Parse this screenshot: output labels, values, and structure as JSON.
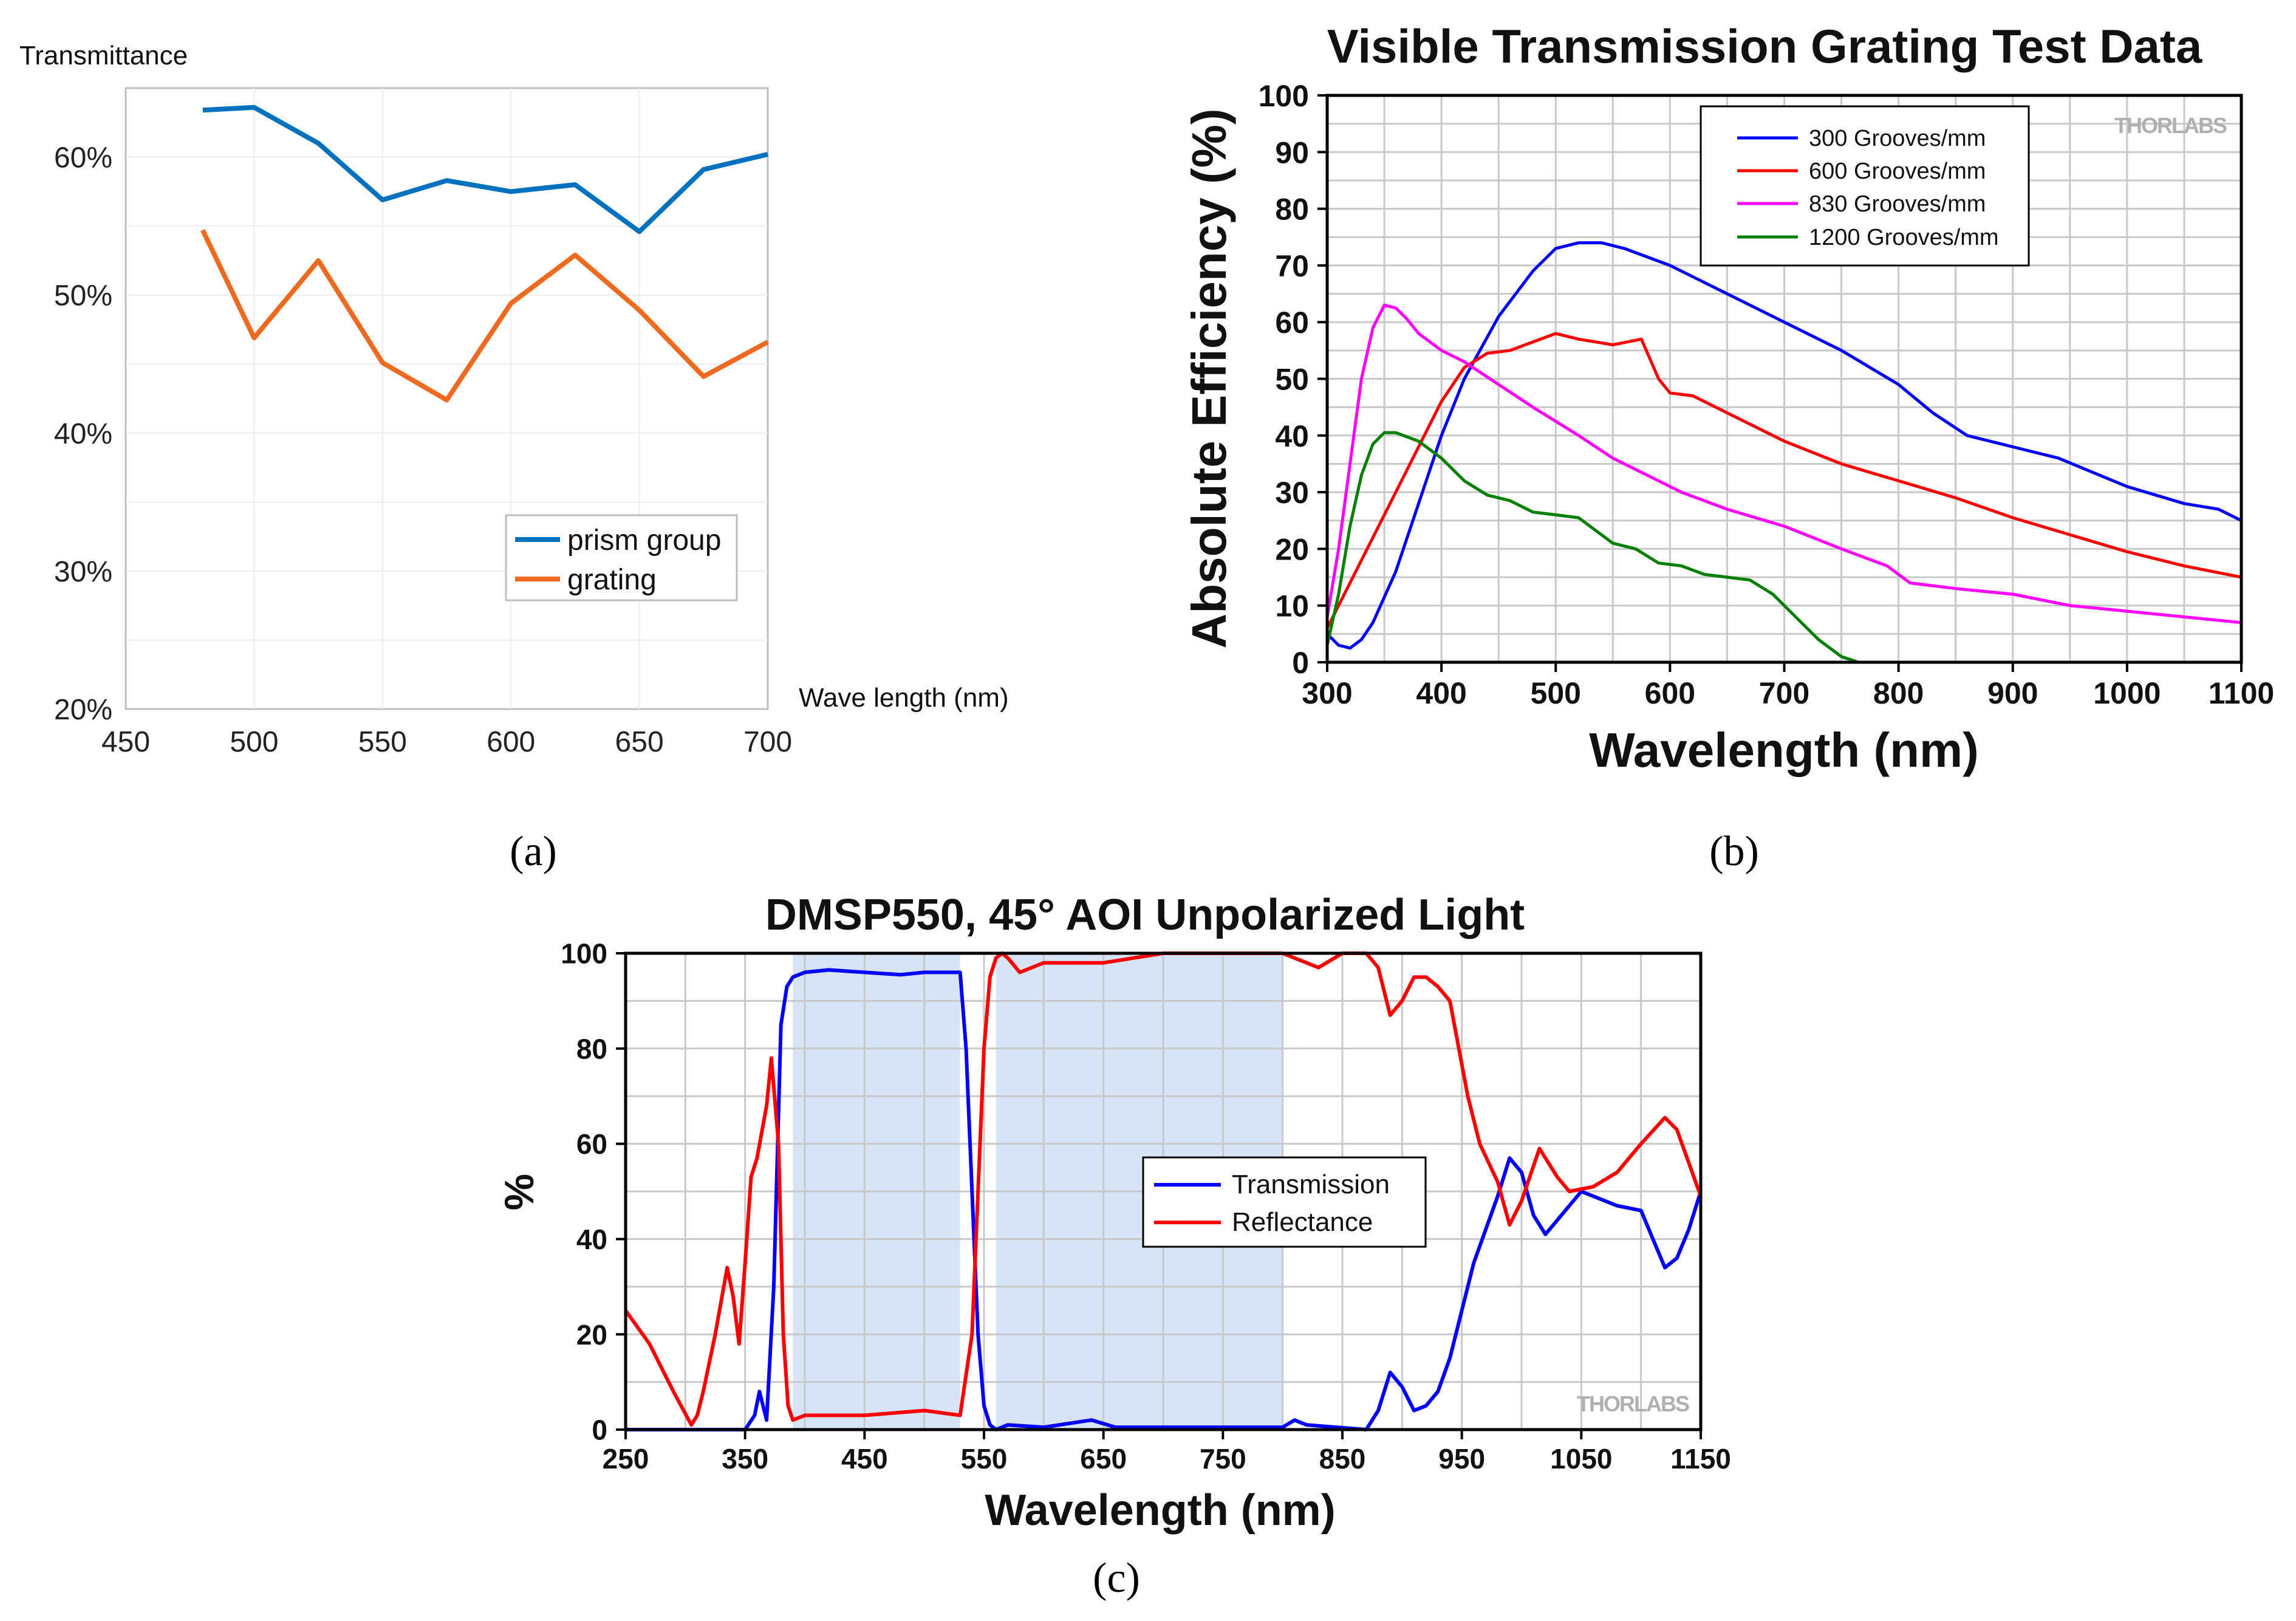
{
  "chart_data": [
    {
      "panel": "a",
      "panel_label": "(a)",
      "type": "line",
      "title": "",
      "ylabel": "Transmittance",
      "xlabel": "Wave length (nm)",
      "xlim": [
        450,
        700
      ],
      "ylim": [
        20,
        65
      ],
      "xticks": [
        450,
        500,
        550,
        600,
        650,
        700
      ],
      "yticks": [
        20,
        30,
        40,
        50,
        60
      ],
      "ytick_labels": [
        "20%",
        "30%",
        "40%",
        "50%",
        "60%"
      ],
      "grid": true,
      "legend": "lower-right",
      "series": [
        {
          "name": "prism group",
          "color": "#0072BD",
          "x": [
            480,
            500,
            525,
            550,
            575,
            600,
            625,
            650,
            675,
            700
          ],
          "y": [
            63.4,
            63.6,
            61.0,
            56.9,
            58.3,
            57.5,
            58.0,
            54.6,
            59.1,
            60.2
          ]
        },
        {
          "name": "grating",
          "color": "#EE6A1F",
          "x": [
            480,
            500,
            525,
            550,
            575,
            600,
            625,
            650,
            675,
            700
          ],
          "y": [
            54.7,
            46.9,
            52.5,
            45.1,
            42.4,
            49.4,
            52.9,
            48.9,
            44.1,
            46.6
          ]
        }
      ]
    },
    {
      "panel": "b",
      "panel_label": "(b)",
      "type": "line",
      "title": "Visible Transmission Grating Test Data",
      "xlabel": "Wavelength (nm)",
      "ylabel": "Absolute Efficiency (%)",
      "watermark": "THORLABS",
      "xlim": [
        300,
        1100
      ],
      "ylim": [
        0,
        100
      ],
      "xticks": [
        300,
        400,
        500,
        600,
        700,
        800,
        900,
        1000,
        1100
      ],
      "yticks": [
        0,
        10,
        20,
        30,
        40,
        50,
        60,
        70,
        80,
        90,
        100
      ],
      "grid": true,
      "legend": "top-center",
      "series": [
        {
          "name": "300 Grooves/mm",
          "color": "#0000FF",
          "x": [
            300,
            310,
            320,
            330,
            340,
            360,
            380,
            400,
            420,
            450,
            480,
            500,
            520,
            540,
            560,
            600,
            650,
            700,
            750,
            800,
            830,
            860,
            900,
            940,
            1000,
            1050,
            1080,
            1100
          ],
          "y": [
            5,
            3,
            2.5,
            4,
            7,
            16,
            28,
            40,
            50,
            61,
            69,
            73,
            74,
            74,
            73,
            70,
            65,
            60,
            55,
            49,
            44,
            40,
            38,
            36,
            31,
            28,
            27,
            25
          ]
        },
        {
          "name": "600 Grooves/mm",
          "color": "#FF0000",
          "x": [
            300,
            320,
            340,
            360,
            380,
            400,
            420,
            440,
            460,
            480,
            500,
            520,
            550,
            575,
            590,
            600,
            620,
            650,
            700,
            750,
            800,
            850,
            900,
            950,
            1000,
            1050,
            1100
          ],
          "y": [
            6,
            14,
            22,
            30,
            38,
            46,
            52,
            54.5,
            55,
            56.5,
            58,
            57,
            56,
            57,
            50,
            47.5,
            47,
            44,
            39,
            35,
            32,
            29,
            25.5,
            22.5,
            19.5,
            17,
            15
          ]
        },
        {
          "name": "830 Grooves/mm",
          "color": "#FF00FF",
          "x": [
            300,
            310,
            320,
            330,
            340,
            350,
            360,
            370,
            380,
            400,
            420,
            450,
            480,
            520,
            550,
            580,
            610,
            650,
            700,
            750,
            790,
            810,
            850,
            900,
            950,
            1000,
            1050,
            1100
          ],
          "y": [
            8,
            20,
            35,
            50,
            59,
            63,
            62.5,
            60.5,
            58,
            55,
            53,
            49,
            45,
            40,
            36,
            33,
            30,
            27,
            24,
            20,
            17,
            14,
            13,
            12,
            10,
            9,
            8,
            7
          ]
        },
        {
          "name": "1200 Grooves/mm",
          "color": "#008000",
          "x": [
            300,
            310,
            320,
            330,
            340,
            350,
            360,
            380,
            400,
            420,
            440,
            460,
            480,
            500,
            520,
            530,
            550,
            570,
            590,
            610,
            630,
            650,
            670,
            690,
            710,
            730,
            750,
            765
          ],
          "y": [
            3,
            12,
            24,
            33,
            38.5,
            40.5,
            40.5,
            39,
            36,
            32,
            29.5,
            28.5,
            26.5,
            26,
            25.5,
            24,
            21,
            20,
            17.5,
            17,
            15.5,
            15,
            14.5,
            12,
            8,
            4,
            1,
            0
          ]
        }
      ]
    },
    {
      "panel": "c",
      "panel_label": "(c)",
      "type": "line",
      "title": "DMSP550, 45° AOI Unpolarized Light",
      "xlabel": "Wavelength (nm)",
      "ylabel": "%",
      "watermark": "THORLABS",
      "xlim": [
        250,
        1150
      ],
      "ylim": [
        0,
        100
      ],
      "xticks": [
        250,
        350,
        450,
        550,
        650,
        750,
        850,
        950,
        1050,
        1150
      ],
      "yticks": [
        0,
        20,
        40,
        60,
        80,
        100
      ],
      "grid": true,
      "legend": "center-right",
      "shaded_bands": [
        [
          390,
          530
        ],
        [
          560,
          800
        ]
      ],
      "series": [
        {
          "name": "Transmission",
          "color": "#0000FF",
          "x": [
            250,
            350,
            358,
            362,
            368,
            374,
            380,
            385,
            390,
            400,
            420,
            450,
            480,
            500,
            530,
            535,
            540,
            545,
            550,
            555,
            560,
            570,
            600,
            640,
            660,
            700,
            800,
            810,
            820,
            870,
            880,
            890,
            900,
            910,
            920,
            930,
            940,
            960,
            980,
            990,
            1000,
            1010,
            1020,
            1040,
            1050,
            1060,
            1080,
            1100,
            1110,
            1120,
            1130,
            1140,
            1150
          ],
          "y": [
            0,
            0,
            3,
            8,
            2,
            30,
            85,
            93,
            95,
            96,
            96.5,
            96,
            95.5,
            96,
            96,
            80,
            50,
            20,
            5,
            1,
            0,
            1,
            0.5,
            2,
            0.5,
            0.5,
            0.5,
            2,
            1,
            0,
            4,
            12,
            9,
            4,
            5,
            8,
            15,
            35,
            49,
            57,
            54,
            45,
            41,
            47,
            50,
            49,
            47,
            46,
            40,
            34,
            36,
            42,
            50
          ]
        },
        {
          "name": "Reflectance",
          "color": "#FF0000",
          "x": [
            250,
            270,
            290,
            305,
            310,
            315,
            325,
            335,
            340,
            345,
            350,
            355,
            360,
            368,
            372,
            378,
            382,
            386,
            390,
            400,
            450,
            500,
            530,
            540,
            545,
            550,
            555,
            560,
            565,
            570,
            580,
            600,
            650,
            700,
            800,
            830,
            850,
            870,
            880,
            890,
            900,
            910,
            920,
            930,
            940,
            955,
            965,
            980,
            990,
            1000,
            1015,
            1030,
            1040,
            1060,
            1080,
            1100,
            1120,
            1130,
            1150
          ],
          "y": [
            25,
            18,
            8,
            1,
            3,
            8,
            20,
            34,
            28,
            18,
            35,
            53,
            57,
            68,
            78,
            60,
            20,
            5,
            2,
            3,
            3,
            4,
            3,
            20,
            50,
            80,
            95,
            99,
            100,
            99,
            96,
            98,
            98,
            100,
            100,
            97,
            100,
            100,
            97,
            87,
            90,
            95,
            95,
            93,
            90,
            70,
            60,
            52,
            43,
            48,
            59,
            53,
            50,
            51,
            54,
            60,
            65.5,
            63,
            49
          ]
        }
      ]
    }
  ]
}
